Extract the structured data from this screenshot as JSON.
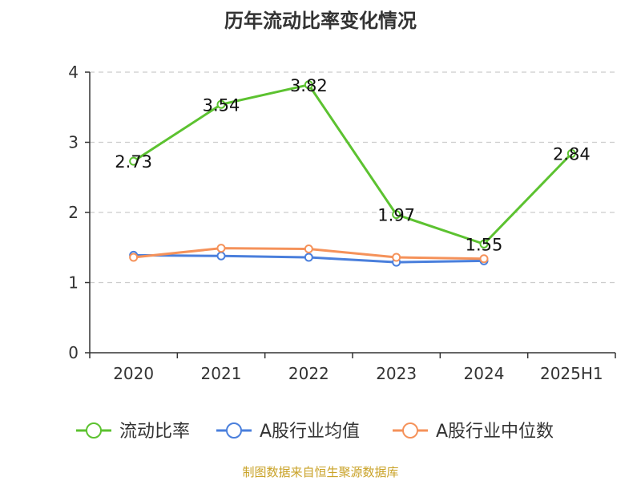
{
  "chart_data": {
    "type": "line",
    "title": "历年流动比率变化情况",
    "categories": [
      "2020",
      "2021",
      "2022",
      "2023",
      "2024",
      "2025H1"
    ],
    "ylim": [
      0,
      4
    ],
    "yticks": [
      "0",
      "1",
      "2",
      "3",
      "4"
    ],
    "grid": true,
    "legend_position": "bottom",
    "series": [
      {
        "name": "流动比率",
        "color": "#5cc230",
        "values": [
          2.73,
          3.54,
          3.82,
          1.97,
          1.55,
          2.84
        ],
        "labels": [
          "2.73",
          "3.54",
          "3.82",
          "1.97",
          "1.55",
          "2.84"
        ]
      },
      {
        "name": "A股行业均值",
        "color": "#4a7fdc",
        "values": [
          1.39,
          1.38,
          1.36,
          1.29,
          1.31,
          null
        ]
      },
      {
        "name": "A股行业中位数",
        "color": "#f5925a",
        "values": [
          1.36,
          1.49,
          1.48,
          1.36,
          1.34,
          null
        ]
      }
    ]
  },
  "source_note": "制图数据来自恒生聚源数据库"
}
